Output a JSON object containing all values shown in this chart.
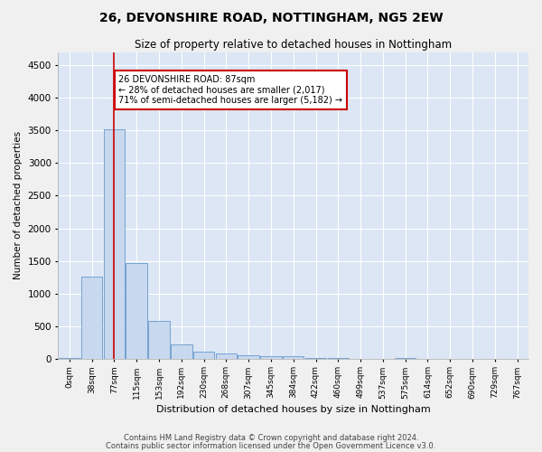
{
  "title1": "26, DEVONSHIRE ROAD, NOTTINGHAM, NG5 2EW",
  "title2": "Size of property relative to detached houses in Nottingham",
  "xlabel": "Distribution of detached houses by size in Nottingham",
  "ylabel": "Number of detached properties",
  "bar_color": "#c8d8ee",
  "bar_edge_color": "#6699cc",
  "bg_color": "#dce6f5",
  "grid_color": "#ffffff",
  "annotation_box_color": "#cc0000",
  "property_line_color": "#cc0000",
  "fig_bg_color": "#f0f0f0",
  "categories": [
    "0sqm",
    "38sqm",
    "77sqm",
    "115sqm",
    "153sqm",
    "192sqm",
    "230sqm",
    "268sqm",
    "307sqm",
    "345sqm",
    "384sqm",
    "422sqm",
    "460sqm",
    "499sqm",
    "537sqm",
    "575sqm",
    "614sqm",
    "652sqm",
    "690sqm",
    "729sqm",
    "767sqm"
  ],
  "bar_heights": [
    10,
    1260,
    3520,
    1470,
    575,
    220,
    110,
    80,
    55,
    40,
    30,
    10,
    5,
    0,
    0,
    5,
    0,
    0,
    0,
    0,
    0
  ],
  "ylim": [
    0,
    4700
  ],
  "yticks": [
    0,
    500,
    1000,
    1500,
    2000,
    2500,
    3000,
    3500,
    4000,
    4500
  ],
  "property_bar_index": 2,
  "annotation_title": "26 DEVONSHIRE ROAD: 87sqm",
  "annotation_line1": "← 28% of detached houses are smaller (2,017)",
  "annotation_line2": "71% of semi-detached houses are larger (5,182) →",
  "footer1": "Contains HM Land Registry data © Crown copyright and database right 2024.",
  "footer2": "Contains public sector information licensed under the Open Government Licence v3.0."
}
